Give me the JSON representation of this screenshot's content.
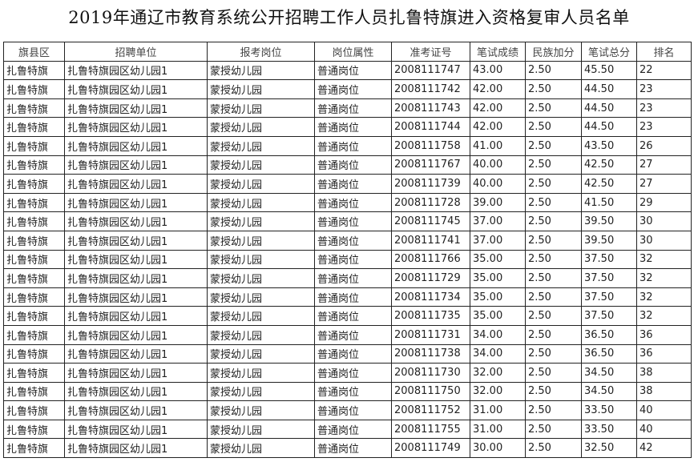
{
  "title": "2019年通辽市教育系统公开招聘工作人员扎鲁特旗进入资格复审人员名单",
  "columns": [
    "旗县区",
    "招聘单位",
    "报考岗位",
    "岗位属性",
    "准考证号",
    "笔试成绩",
    "民族加分",
    "笔试总分",
    "排名"
  ],
  "rows": [
    [
      "扎鲁特旗",
      "扎鲁特旗园区幼儿园1",
      "蒙授幼儿园",
      "普通岗位",
      "2008111747",
      "43.00",
      "2.50",
      "45.50",
      "22"
    ],
    [
      "扎鲁特旗",
      "扎鲁特旗园区幼儿园1",
      "蒙授幼儿园",
      "普通岗位",
      "2008111742",
      "42.00",
      "2.50",
      "44.50",
      "23"
    ],
    [
      "扎鲁特旗",
      "扎鲁特旗园区幼儿园1",
      "蒙授幼儿园",
      "普通岗位",
      "2008111743",
      "42.00",
      "2.50",
      "44.50",
      "23"
    ],
    [
      "扎鲁特旗",
      "扎鲁特旗园区幼儿园1",
      "蒙授幼儿园",
      "普通岗位",
      "2008111744",
      "42.00",
      "2.50",
      "44.50",
      "23"
    ],
    [
      "扎鲁特旗",
      "扎鲁特旗园区幼儿园1",
      "蒙授幼儿园",
      "普通岗位",
      "2008111758",
      "41.00",
      "2.50",
      "43.50",
      "26"
    ],
    [
      "扎鲁特旗",
      "扎鲁特旗园区幼儿园1",
      "蒙授幼儿园",
      "普通岗位",
      "2008111767",
      "40.00",
      "2.50",
      "42.50",
      "27"
    ],
    [
      "扎鲁特旗",
      "扎鲁特旗园区幼儿园1",
      "蒙授幼儿园",
      "普通岗位",
      "2008111739",
      "40.00",
      "2.50",
      "42.50",
      "27"
    ],
    [
      "扎鲁特旗",
      "扎鲁特旗园区幼儿园1",
      "蒙授幼儿园",
      "普通岗位",
      "2008111728",
      "39.00",
      "2.50",
      "41.50",
      "29"
    ],
    [
      "扎鲁特旗",
      "扎鲁特旗园区幼儿园1",
      "蒙授幼儿园",
      "普通岗位",
      "2008111745",
      "37.00",
      "2.50",
      "39.50",
      "30"
    ],
    [
      "扎鲁特旗",
      "扎鲁特旗园区幼儿园1",
      "蒙授幼儿园",
      "普通岗位",
      "2008111741",
      "37.00",
      "2.50",
      "39.50",
      "30"
    ],
    [
      "扎鲁特旗",
      "扎鲁特旗园区幼儿园1",
      "蒙授幼儿园",
      "普通岗位",
      "2008111766",
      "35.00",
      "2.50",
      "37.50",
      "32"
    ],
    [
      "扎鲁特旗",
      "扎鲁特旗园区幼儿园1",
      "蒙授幼儿园",
      "普通岗位",
      "2008111729",
      "35.00",
      "2.50",
      "37.50",
      "32"
    ],
    [
      "扎鲁特旗",
      "扎鲁特旗园区幼儿园1",
      "蒙授幼儿园",
      "普通岗位",
      "2008111734",
      "35.00",
      "2.50",
      "37.50",
      "32"
    ],
    [
      "扎鲁特旗",
      "扎鲁特旗园区幼儿园1",
      "蒙授幼儿园",
      "普通岗位",
      "2008111735",
      "35.00",
      "2.50",
      "37.50",
      "32"
    ],
    [
      "扎鲁特旗",
      "扎鲁特旗园区幼儿园1",
      "蒙授幼儿园",
      "普通岗位",
      "2008111731",
      "34.00",
      "2.50",
      "36.50",
      "36"
    ],
    [
      "扎鲁特旗",
      "扎鲁特旗园区幼儿园1",
      "蒙授幼儿园",
      "普通岗位",
      "2008111738",
      "34.00",
      "2.50",
      "36.50",
      "36"
    ],
    [
      "扎鲁特旗",
      "扎鲁特旗园区幼儿园1",
      "蒙授幼儿园",
      "普通岗位",
      "2008111730",
      "32.00",
      "2.50",
      "34.50",
      "38"
    ],
    [
      "扎鲁特旗",
      "扎鲁特旗园区幼儿园1",
      "蒙授幼儿园",
      "普通岗位",
      "2008111750",
      "32.00",
      "2.50",
      "34.50",
      "38"
    ],
    [
      "扎鲁特旗",
      "扎鲁特旗园区幼儿园1",
      "蒙授幼儿园",
      "普通岗位",
      "2008111752",
      "31.00",
      "2.50",
      "33.50",
      "40"
    ],
    [
      "扎鲁特旗",
      "扎鲁特旗园区幼儿园1",
      "蒙授幼儿园",
      "普通岗位",
      "2008111755",
      "31.00",
      "2.50",
      "33.50",
      "40"
    ],
    [
      "扎鲁特旗",
      "扎鲁特旗园区幼儿园1",
      "蒙授幼儿园",
      "普通岗位",
      "2008111749",
      "30.00",
      "2.50",
      "32.50",
      "42"
    ]
  ]
}
